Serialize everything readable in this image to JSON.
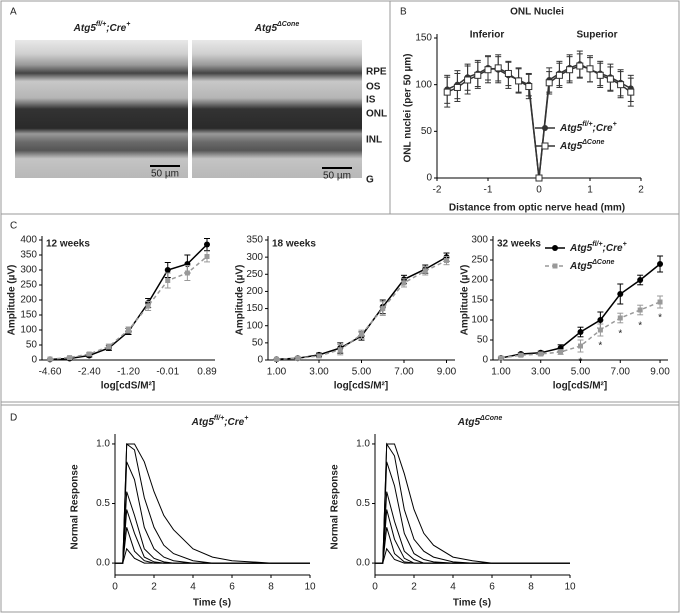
{
  "figure": {
    "panel_labels": [
      "A",
      "B",
      "C",
      "D"
    ]
  },
  "panel_a": {
    "titles": [
      [
        "Atg5",
        "fl/+",
        ";Cre",
        "+"
      ],
      [
        "Atg5",
        "ΔCone"
      ]
    ],
    "layer_labels": [
      "RPE",
      "OS",
      "IS",
      "ONL",
      "INL",
      "G"
    ],
    "scale_bar": "50 µm"
  },
  "chart_data": [
    {
      "type": "line",
      "title": "ONL Nuclei",
      "annotations": [
        "Inferior",
        "Superior"
      ],
      "x_label": "Distance from optic nerve head (mm)",
      "y_label": "ONL nuclei (per 50 µm)",
      "x": [
        -1.8,
        -1.6,
        -1.4,
        -1.2,
        -1.0,
        -0.8,
        -0.6,
        -0.4,
        -0.2,
        0,
        0.2,
        0.4,
        0.6,
        0.8,
        1.0,
        1.2,
        1.4,
        1.6,
        1.8
      ],
      "xlim": [
        -2,
        2
      ],
      "xticks": [
        -2,
        -1,
        0,
        1,
        2
      ],
      "ylim": [
        0,
        150
      ],
      "yticks": [
        0,
        50,
        100,
        150
      ],
      "legend": "right",
      "series": [
        {
          "name": [
            "Atg5",
            "fl/+",
            ";Cre",
            "+"
          ],
          "color": "#333333",
          "marker": "circle",
          "values": [
            95,
            100,
            108,
            112,
            118,
            116,
            110,
            105,
            100,
            0,
            105,
            112,
            118,
            122,
            116,
            112,
            108,
            102,
            96
          ],
          "errors": [
            15,
            15,
            14,
            14,
            13,
            14,
            14,
            13,
            12,
            0,
            13,
            13,
            14,
            14,
            13,
            13,
            14,
            14,
            14
          ]
        },
        {
          "name": [
            "Atg5",
            "ΔCone"
          ],
          "color": "#333333",
          "marker": "square-open",
          "values": [
            92,
            97,
            105,
            110,
            116,
            118,
            112,
            104,
            98,
            0,
            102,
            110,
            116,
            120,
            117,
            110,
            106,
            100,
            92
          ],
          "errors": [
            16,
            15,
            15,
            14,
            14,
            14,
            13,
            13,
            13,
            0,
            12,
            13,
            14,
            13,
            14,
            13,
            13,
            14,
            15
          ]
        }
      ]
    },
    {
      "type": "line",
      "title": "12 weeks",
      "x_label": "log[cdS/M²]",
      "y_label": "Amplitude (µV)",
      "categories": [
        "-4.60",
        null,
        "-2.40",
        null,
        "-1.20",
        null,
        "-0.01",
        null,
        "0.89"
      ],
      "ylim": [
        0,
        400
      ],
      "yticks": [
        0,
        50,
        100,
        150,
        200,
        250,
        300,
        350,
        400
      ],
      "series": [
        {
          "color": "#000000",
          "marker": "circle",
          "values": [
            2,
            5,
            15,
            40,
            95,
            190,
            300,
            320,
            385
          ],
          "errors": [
            2,
            3,
            5,
            8,
            10,
            15,
            25,
            30,
            20
          ]
        },
        {
          "color": "#999999",
          "marker": "square",
          "dash": true,
          "values": [
            3,
            8,
            20,
            45,
            100,
            180,
            265,
            290,
            345
          ],
          "errors": [
            2,
            3,
            5,
            8,
            10,
            15,
            25,
            25,
            18
          ]
        }
      ]
    },
    {
      "type": "line",
      "title": "18 weeks",
      "x_label": "log[cdS/M²]",
      "y_label": "Amplitude (µV)",
      "x": [
        1,
        2,
        3,
        4,
        5,
        6,
        7,
        8,
        9
      ],
      "xlim": [
        0.6,
        9.4
      ],
      "xticks": [
        {
          "value": 1,
          "label": "1.00"
        },
        {
          "value": 3,
          "label": "3.00"
        },
        {
          "value": 5,
          "label": "5.00"
        },
        {
          "value": 7,
          "label": "7.00"
        },
        {
          "value": 9,
          "label": "9.00"
        }
      ],
      "ylim": [
        0,
        350
      ],
      "yticks": [
        0,
        50,
        100,
        150,
        200,
        250,
        300,
        350
      ],
      "series": [
        {
          "color": "#000000",
          "marker": "circle",
          "values": [
            2,
            5,
            15,
            35,
            70,
            155,
            235,
            265,
            300
          ],
          "errors": [
            2,
            3,
            5,
            15,
            12,
            20,
            12,
            12,
            12
          ]
        },
        {
          "color": "#999999",
          "marker": "square",
          "dash": true,
          "values": [
            2,
            5,
            12,
            30,
            75,
            150,
            225,
            260,
            290
          ],
          "errors": [
            2,
            3,
            5,
            15,
            12,
            20,
            12,
            12,
            12
          ]
        }
      ]
    },
    {
      "type": "line",
      "title": "32 weeks",
      "x_label": "log[cdS/M²]",
      "y_label": "Amplitude (µV)",
      "x": [
        1,
        2,
        3,
        4,
        5,
        6,
        7,
        8,
        9
      ],
      "xlim": [
        0.6,
        9.4
      ],
      "xticks": [
        {
          "value": 1,
          "label": "1.00"
        },
        {
          "value": 3,
          "label": "3.00"
        },
        {
          "value": 5,
          "label": "5.00"
        },
        {
          "value": 7,
          "label": "7.00"
        },
        {
          "value": 9,
          "label": "9.00"
        }
      ],
      "ylim": [
        0,
        300
      ],
      "yticks": [
        0,
        50,
        100,
        150,
        200,
        250,
        300
      ],
      "legend": "top-right",
      "significance": {
        "label": "*",
        "x": [
          5,
          6,
          7,
          8,
          9
        ]
      },
      "series": [
        {
          "name": [
            "Atg5",
            "fl/+",
            ";Cre",
            "+"
          ],
          "color": "#000000",
          "marker": "circle",
          "values": [
            5,
            15,
            18,
            30,
            70,
            100,
            165,
            200,
            240
          ],
          "errors": [
            2,
            3,
            4,
            8,
            12,
            20,
            25,
            12,
            20
          ]
        },
        {
          "name": [
            "Atg5",
            "ΔCone"
          ],
          "color": "#999999",
          "marker": "square",
          "dash": true,
          "values": [
            5,
            12,
            15,
            20,
            35,
            75,
            105,
            125,
            145
          ],
          "errors": [
            2,
            3,
            4,
            6,
            15,
            15,
            12,
            12,
            15
          ]
        }
      ]
    },
    {
      "type": "line",
      "title": [
        "Atg5",
        "fl/+",
        ";Cre",
        "+"
      ],
      "x_label": "Time (s)",
      "y_label": "Normal Response",
      "x": [
        0,
        0.4,
        0.6,
        1,
        1.5,
        2,
        2.5,
        3,
        4,
        5,
        6,
        8,
        10
      ],
      "xlim": [
        0,
        10
      ],
      "xticks": [
        0,
        2,
        4,
        6,
        8,
        10
      ],
      "ylim": [
        -0.1,
        1.05
      ],
      "yticks": [
        {
          "value": 0,
          "label": "0.0"
        },
        {
          "value": 0.5,
          "label": "0.5"
        },
        {
          "value": 1,
          "label": "1.0"
        }
      ],
      "series": [
        {
          "color": "#000000",
          "values": [
            0,
            0,
            1.0,
            1.0,
            0.85,
            0.6,
            0.4,
            0.28,
            0.12,
            0.05,
            0.02,
            0,
            0
          ]
        },
        {
          "color": "#000000",
          "values": [
            0,
            0,
            1.0,
            0.95,
            0.55,
            0.3,
            0.15,
            0.08,
            0.02,
            0,
            0,
            0,
            0
          ]
        },
        {
          "color": "#000000",
          "values": [
            0,
            0,
            0.85,
            0.7,
            0.3,
            0.12,
            0.05,
            0.02,
            0,
            0,
            0,
            0,
            0
          ]
        },
        {
          "color": "#000000",
          "values": [
            0,
            0,
            0.6,
            0.4,
            0.12,
            0.04,
            0.01,
            0,
            0,
            0,
            0,
            0,
            0
          ]
        },
        {
          "color": "#000000",
          "values": [
            0,
            0,
            0.45,
            0.25,
            0.05,
            0.01,
            0,
            0,
            0,
            0,
            0,
            0,
            0
          ]
        },
        {
          "color": "#000000",
          "values": [
            0,
            0,
            0.3,
            0.1,
            0.02,
            0,
            0,
            0,
            0,
            0,
            0,
            0,
            0
          ]
        },
        {
          "color": "#000000",
          "values": [
            0,
            0,
            0.12,
            0.04,
            0,
            0,
            0,
            0,
            0,
            0,
            0,
            0,
            0
          ]
        }
      ]
    },
    {
      "type": "line",
      "title": [
        "Atg5",
        "ΔCone"
      ],
      "x_label": "Time (s)",
      "y_label": "Normal Response",
      "x": [
        0,
        0.4,
        0.6,
        1,
        1.5,
        2,
        2.5,
        3,
        4,
        5,
        6,
        8,
        10
      ],
      "xlim": [
        0,
        10
      ],
      "xticks": [
        0,
        2,
        4,
        6,
        8,
        10
      ],
      "ylim": [
        -0.1,
        1.05
      ],
      "yticks": [
        {
          "value": 0,
          "label": "0.0"
        },
        {
          "value": 0.5,
          "label": "0.5"
        },
        {
          "value": 1,
          "label": "1.0"
        }
      ],
      "series": [
        {
          "color": "#000000",
          "values": [
            0,
            0,
            1.0,
            1.0,
            0.75,
            0.45,
            0.25,
            0.15,
            0.05,
            0.02,
            0,
            0,
            0
          ]
        },
        {
          "color": "#000000",
          "values": [
            0,
            0,
            1.0,
            0.9,
            0.45,
            0.2,
            0.1,
            0.05,
            0.01,
            0,
            0,
            0,
            0
          ]
        },
        {
          "color": "#000000",
          "values": [
            0,
            0,
            0.85,
            0.65,
            0.25,
            0.08,
            0.03,
            0.01,
            0,
            0,
            0,
            0,
            0
          ]
        },
        {
          "color": "#000000",
          "values": [
            0,
            0,
            0.6,
            0.35,
            0.1,
            0.03,
            0,
            0,
            0,
            0,
            0,
            0,
            0
          ]
        },
        {
          "color": "#000000",
          "values": [
            0,
            0,
            0.45,
            0.2,
            0.04,
            0,
            0,
            0,
            0,
            0,
            0,
            0,
            0
          ]
        },
        {
          "color": "#000000",
          "values": [
            0,
            0,
            0.3,
            0.08,
            0.01,
            0,
            0,
            0,
            0,
            0,
            0,
            0,
            0
          ]
        },
        {
          "color": "#000000",
          "values": [
            0,
            0,
            0.12,
            0.03,
            0,
            0,
            0,
            0,
            0,
            0,
            0,
            0,
            0
          ]
        }
      ]
    }
  ]
}
